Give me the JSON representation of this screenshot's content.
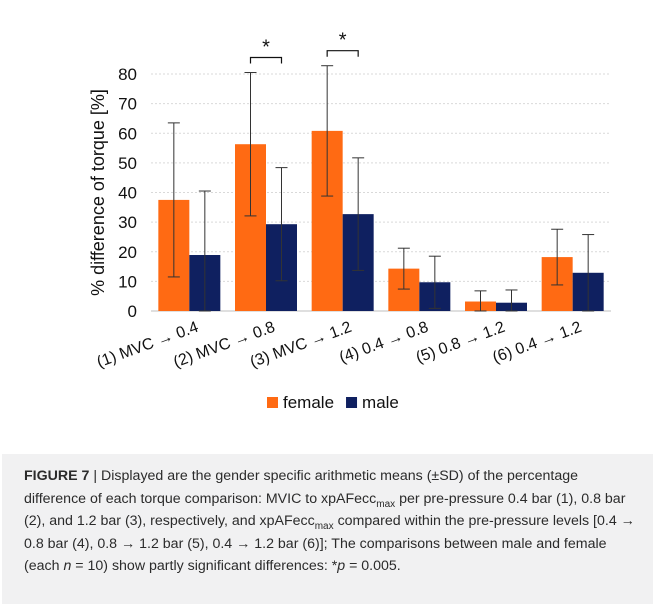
{
  "chart_data": {
    "type": "bar",
    "ylabel": "% difference of torque [%]",
    "ylim": [
      0,
      80
    ],
    "yticks": [
      "0",
      "10",
      "20",
      "30",
      "40",
      "50",
      "60",
      "70",
      "80"
    ],
    "grid": true,
    "legend_position": "bottom",
    "categories": [
      "(1) MVC → 0.4",
      "(2) MVC → 0.8",
      "(3) MVC → 1.2",
      "(4) 0.4 → 0.8",
      "(5) 0.8 → 1.2",
      "(6) 0.4 → 1.2"
    ],
    "series": [
      {
        "name": "female",
        "color": "#ff6a13",
        "values": [
          37.5,
          56.3,
          60.8,
          14.3,
          3.2,
          18.2
        ],
        "sd": [
          26.0,
          24.2,
          22.0,
          6.9,
          3.6,
          9.4
        ]
      },
      {
        "name": "male",
        "color": "#0f2060",
        "values": [
          18.9,
          29.3,
          32.7,
          9.7,
          2.8,
          12.9
        ],
        "sd": [
          21.6,
          19.1,
          19.0,
          8.8,
          4.3,
          12.9
        ]
      }
    ],
    "significance": [
      {
        "category_index": 1,
        "label": "*"
      },
      {
        "category_index": 2,
        "label": "*"
      }
    ]
  },
  "caption": {
    "label": "FIGURE 7",
    "separator": " | ",
    "p1": "Displayed are the gender specific arithmetic means (±SD) of the percentage difference of each torque comparison: MVIC to xpAFecc",
    "sub1": "max",
    "p2": " per pre-pressure 0.4 bar (1), 0.8 bar (2), and 1.2 bar (3), respectively, and xpAFecc",
    "sub2": "max",
    "p3": " compared within the pre-pressure levels [0.4 → 0.8 bar (4), 0.8 → 1.2 bar (5), 0.4 → 1.2 bar (6)]; The comparisons between male and female (each ",
    "n_var": "n",
    "p4": " = 10) show partly significant differences: *",
    "p_var": "p",
    "p5": " = 0.005."
  }
}
